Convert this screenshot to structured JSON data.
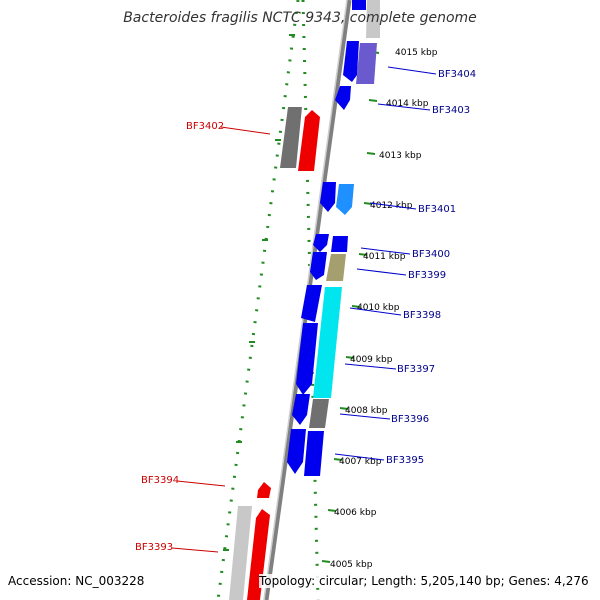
{
  "title": "Bacteroides fragilis NCTC 9343, complete genome",
  "footer": {
    "accession": "Accession: NC_003228",
    "summary": "Topology: circular; Length: 5,205,140 bp; Genes: 4,276"
  },
  "colors": {
    "forward_gene": "#0000ee",
    "reverse_gene": "#ee0000",
    "forward_label": "#00008b",
    "reverse_label": "#cc0000",
    "cyan_gene": "#00e5ee",
    "light_blue_gene": "#1e90ff",
    "slate_gene": "#6a5acd",
    "olive_gene": "#a59e6e",
    "gray_gene": "#707070",
    "light_gray_gene": "#c8c8c8",
    "backbone": "#808080",
    "dotted_ring": "#228b22"
  },
  "scale": {
    "ticks": [
      "4015 kbp",
      "4014 kbp",
      "4013 kbp",
      "4012 kbp",
      "4011 kbp",
      "4010 kbp",
      "4009 kbp",
      "4008 kbp",
      "4007 kbp",
      "4006 kbp",
      "4005 kbp"
    ]
  },
  "labels": {
    "forward": [
      "BF3404",
      "BF3403",
      "BF3401",
      "BF3400",
      "BF3399",
      "BF3398",
      "BF3397",
      "BF3396",
      "BF3395"
    ],
    "reverse": [
      "BF3402",
      "BF3394",
      "BF3393"
    ]
  }
}
